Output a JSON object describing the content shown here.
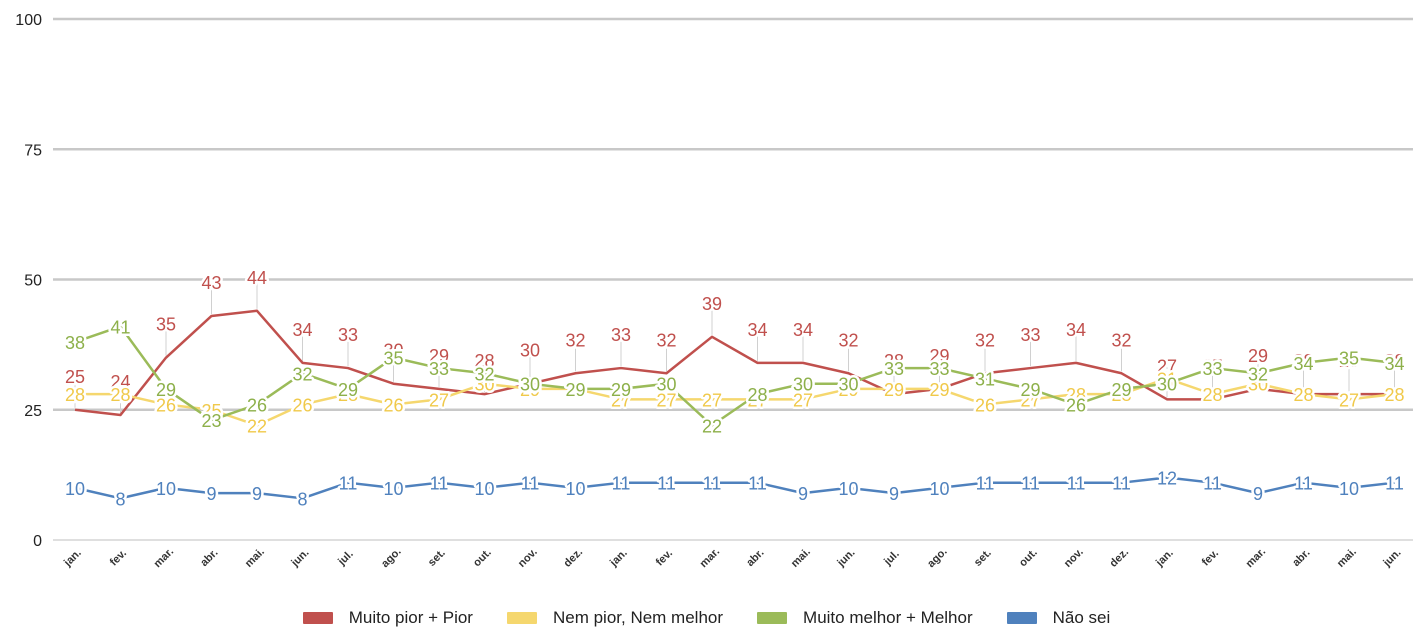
{
  "chart_data": {
    "type": "line",
    "title": "",
    "xlabel": "",
    "ylabel": "",
    "ylim": [
      0,
      100
    ],
    "yticks": [
      0,
      25,
      50,
      75,
      100
    ],
    "grid": true,
    "legend_position": "bottom",
    "categories": [
      "jan.",
      "fev.",
      "mar.",
      "abr.",
      "mai.",
      "jun.",
      "jul.",
      "ago.",
      "set.",
      "out.",
      "nov.",
      "dez.",
      "jan.",
      "fev.",
      "mar.",
      "abr.",
      "mai.",
      "jun.",
      "jul.",
      "ago.",
      "set.",
      "out.",
      "nov.",
      "dez.",
      "jan.",
      "fev.",
      "mar.",
      "abr.",
      "mai.",
      "jun."
    ],
    "series": [
      {
        "name": "Muito pior + Pior",
        "color": "#c0504d",
        "values": [
          25,
          24,
          35,
          43,
          44,
          34,
          33,
          30,
          29,
          28,
          30,
          32,
          33,
          32,
          39,
          34,
          34,
          32,
          28,
          29,
          32,
          33,
          34,
          32,
          27,
          27,
          29,
          28,
          28,
          28
        ]
      },
      {
        "name": "Nem pior, Nem melhor",
        "color": "#f5d76e",
        "values": [
          28,
          28,
          26,
          25,
          22,
          26,
          28,
          26,
          27,
          30,
          29,
          29,
          27,
          27,
          27,
          27,
          27,
          29,
          29,
          29,
          26,
          27,
          28,
          28,
          31,
          28,
          30,
          28,
          27,
          28
        ]
      },
      {
        "name": "Muito melhor + Melhor",
        "color": "#9bbb59",
        "values": [
          38,
          41,
          29,
          23,
          26,
          32,
          29,
          35,
          33,
          32,
          30,
          29,
          29,
          30,
          22,
          28,
          30,
          30,
          33,
          33,
          31,
          29,
          26,
          29,
          30,
          33,
          32,
          34,
          35,
          34
        ]
      },
      {
        "name": "Não sei",
        "color": "#4f81bd",
        "values": [
          10,
          8,
          10,
          9,
          9,
          8,
          11,
          10,
          11,
          10,
          11,
          10,
          11,
          11,
          11,
          11,
          9,
          10,
          9,
          10,
          11,
          11,
          11,
          11,
          12,
          11,
          9,
          11,
          10,
          11
        ]
      }
    ]
  }
}
